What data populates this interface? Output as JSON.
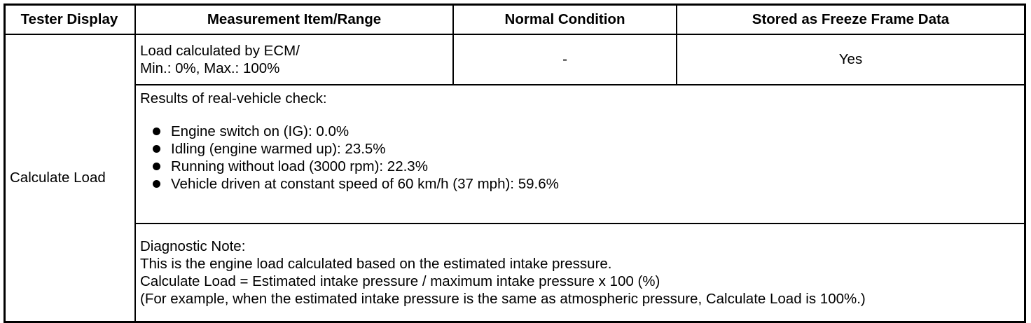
{
  "table": {
    "header": [
      "Tester Display",
      "Measurement Item/Range",
      "Normal Condition",
      "Stored as Freeze Frame Data"
    ],
    "item": {
      "display": "Calculate Load",
      "range": [
        "Load calculated by ECM/",
        "Min.: 0%, Max.: 100%"
      ],
      "normal": "-",
      "freeze": "Yes"
    },
    "check": {
      "title": "Results of real-vehicle check:",
      "bullets": [
        "Engine switch on (IG): 0.0%",
        "Idling (engine warmed up): 23.5%",
        "Running without load (3000 rpm): 22.3%",
        "Vehicle driven at constant speed of 60 km/h (37 mph): 59.6%"
      ]
    },
    "note": {
      "lines": [
        "Diagnostic Note:",
        "This is the engine load calculated based on the estimated intake pressure.",
        "Calculate Load = Estimated intake pressure / maximum intake pressure x 100 (%)",
        "(For example, when the estimated intake pressure is the same as atmospheric pressure, Calculate Load is 100%.)"
      ]
    }
  }
}
